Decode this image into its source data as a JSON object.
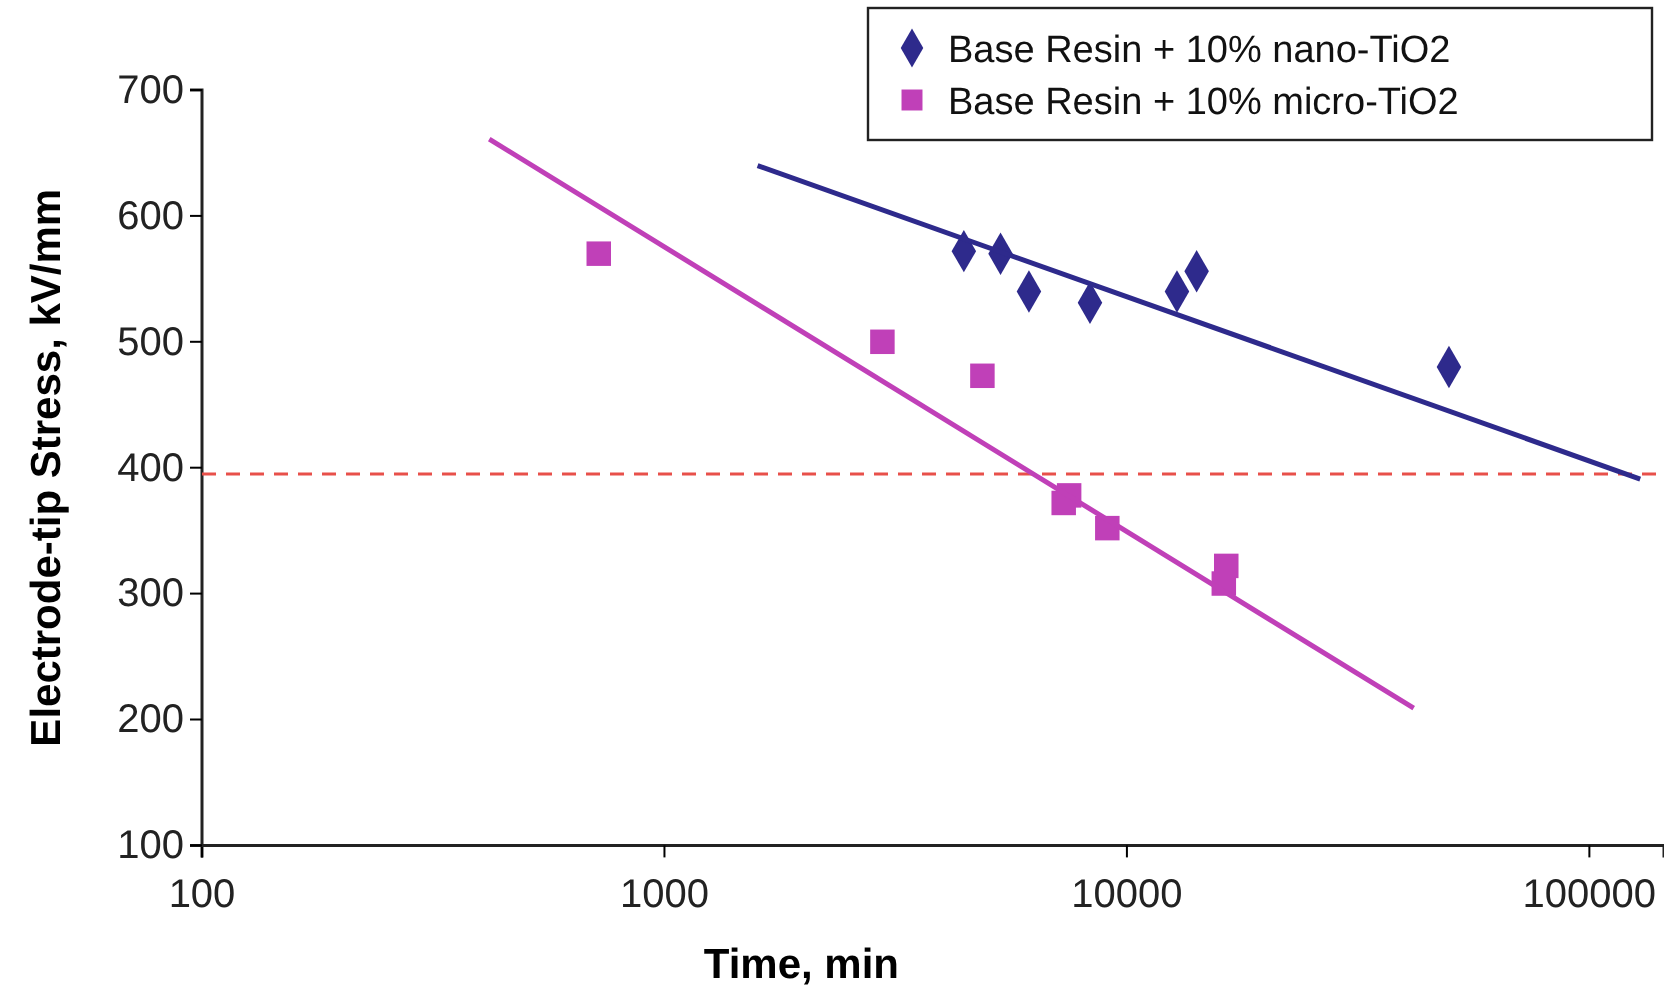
{
  "chart_data": {
    "type": "scatter",
    "xlabel": "Time, min",
    "ylabel": "Electrode-tip Stress, kV/mm",
    "log": "x",
    "xlim": [
      100,
      145000
    ],
    "xticks": [
      100,
      1000,
      10000,
      100000
    ],
    "ylim": [
      100,
      700
    ],
    "yticks": [
      100,
      200,
      300,
      400,
      500,
      600,
      700
    ],
    "grid": false,
    "legend": "top right",
    "series": [
      {
        "name": "Base Resin + 10% nano-TiO2",
        "color": "#2e2a8c",
        "marker": "diamond",
        "x": [
          4440,
          5330,
          6140,
          8320,
          12830,
          14150,
          49700
        ],
        "values": [
          572,
          570,
          540,
          531,
          540,
          556,
          480
        ]
      },
      {
        "name": "Base Resin + 10% micro-TiO2",
        "color": "#c040b8",
        "marker": "square",
        "x": [
          721,
          2960,
          4870,
          7300,
          7500,
          9070,
          16400,
          16200
        ],
        "values": [
          570,
          500,
          473,
          372,
          378,
          352,
          322,
          308
        ]
      },
      {
        "type": "line",
        "color": "#2e2a8c",
        "marker": "none",
        "x": [
          1590,
          128800
        ],
        "values": [
          640,
          391
        ]
      },
      {
        "type": "line",
        "color": "#c040b8",
        "marker": "none",
        "x": [
          418,
          41700
        ],
        "values": [
          661,
          209
        ]
      }
    ],
    "ref_lines": [
      {
        "axis": "y",
        "value": 395,
        "color": "#e8504a",
        "line_style": "dashed"
      }
    ]
  }
}
